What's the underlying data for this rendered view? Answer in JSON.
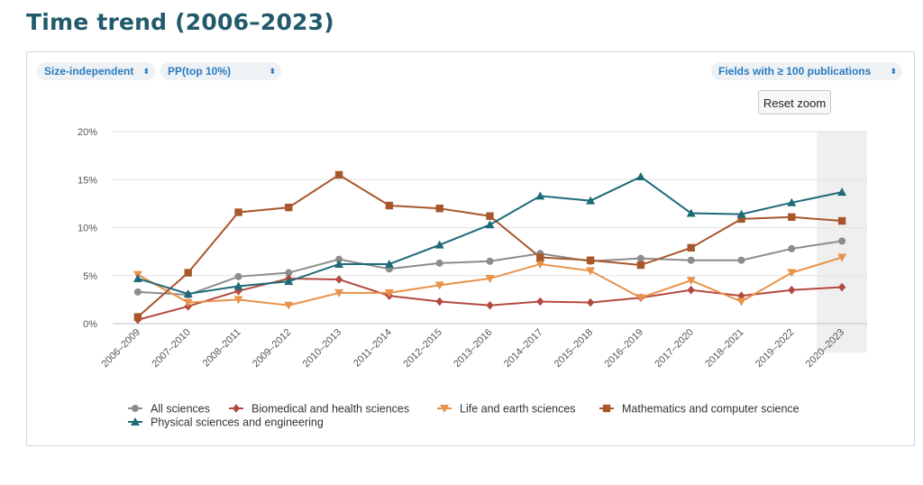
{
  "page": {
    "title": "Time trend (2006–2023)"
  },
  "controls": {
    "size_mode": "Size-independent",
    "indicator": "PP(top 10%)",
    "field_filter": "Fields with ≥ 100 publications",
    "reset_zoom": "Reset zoom"
  },
  "icons": {
    "select_chevron": "up-down-chevron-icon"
  },
  "chart_data": {
    "type": "line",
    "categories": [
      "2006–2009",
      "2007–2010",
      "2008–2011",
      "2009–2012",
      "2010–2013",
      "2011–2014",
      "2012–2015",
      "2013–2016",
      "2014–2017",
      "2015–2018",
      "2016–2019",
      "2017–2020",
      "2018–2021",
      "2019–2022",
      "2020–2023"
    ],
    "y_ticks": [
      "0%",
      "5%",
      "10%",
      "15%",
      "20%"
    ],
    "ylim": [
      0,
      20
    ],
    "y_unit": "%",
    "grid": true,
    "legend_position": "bottom",
    "highlighted_category": "2020–2023",
    "series": [
      {
        "name": "All sciences",
        "color": "#8c8c8c",
        "marker": "circle",
        "values": [
          3.3,
          3.0,
          4.9,
          5.3,
          6.7,
          5.7,
          6.3,
          6.5,
          7.3,
          6.5,
          6.8,
          6.6,
          6.6,
          7.8,
          8.6
        ]
      },
      {
        "name": "Biomedical and health sciences",
        "color": "#b44a3e",
        "marker": "diamond",
        "values": [
          0.4,
          1.8,
          3.4,
          4.7,
          4.6,
          2.9,
          2.3,
          1.9,
          2.3,
          2.2,
          2.7,
          3.5,
          2.9,
          3.5,
          3.8
        ]
      },
      {
        "name": "Life and earth sciences",
        "color": "#e8924a",
        "marker": "triangle-down",
        "values": [
          5.1,
          2.2,
          2.5,
          1.9,
          3.2,
          3.2,
          4.0,
          4.7,
          6.2,
          5.5,
          2.7,
          4.5,
          2.3,
          5.3,
          6.9
        ]
      },
      {
        "name": "Mathematics and computer science",
        "color": "#a8572c",
        "marker": "square",
        "values": [
          0.7,
          5.3,
          11.6,
          12.1,
          15.5,
          12.3,
          12.0,
          11.2,
          6.9,
          6.6,
          6.1,
          7.9,
          10.9,
          11.1,
          10.7
        ]
      },
      {
        "name": "Physical sciences and engineering",
        "color": "#1e6b78",
        "marker": "triangle-up",
        "values": [
          4.7,
          3.1,
          3.9,
          4.4,
          6.2,
          6.2,
          8.2,
          10.3,
          13.3,
          12.8,
          15.3,
          11.5,
          11.4,
          12.6,
          13.7
        ]
      }
    ]
  }
}
